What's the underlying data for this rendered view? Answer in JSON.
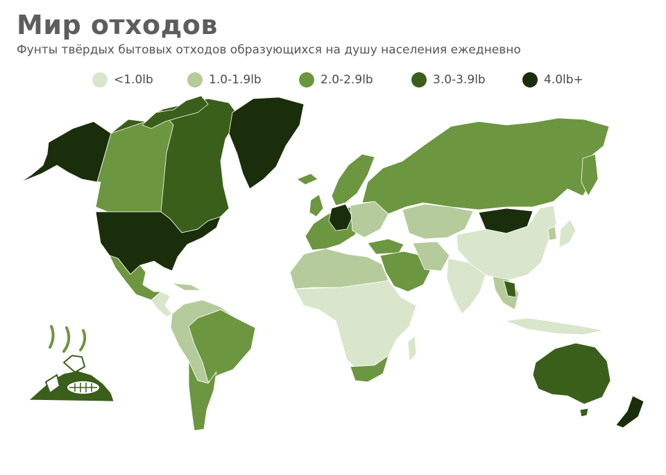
{
  "title": "Мир отходов",
  "subtitle": "Фунты твёрдых бытовых отходов образующихся на душу населения ежедневно",
  "legend": [
    {
      "label": "<1.0lb",
      "color": "#d9e6cc"
    },
    {
      "label": "1.0-1.9lb",
      "color": "#b5cb9b"
    },
    {
      "label": "2.0-2.9lb",
      "color": "#6d9640"
    },
    {
      "label": "3.0-3.9lb",
      "color": "#3a5f1b"
    },
    {
      "label": "4.0lb+",
      "color": "#1b2e0c"
    }
  ],
  "icons": {
    "logo": "garbage-pile-icon"
  }
}
